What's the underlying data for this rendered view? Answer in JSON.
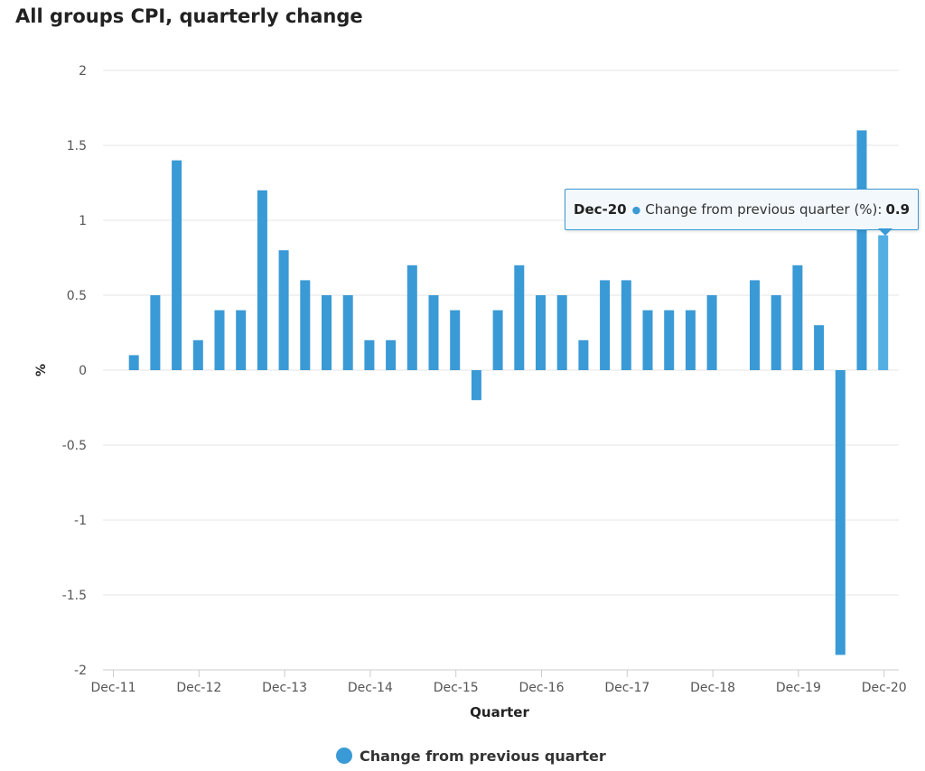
{
  "chart_data": {
    "type": "bar",
    "title": "All groups CPI, quarterly change",
    "xlabel": "Quarter",
    "ylabel": "%",
    "ylim": [
      -2,
      2
    ],
    "yticks": [
      -2,
      -1.5,
      -1,
      -0.5,
      0,
      0.5,
      1,
      1.5,
      2
    ],
    "ytick_labels": [
      "-2",
      "-1.5",
      "-1",
      "-0.5",
      "0",
      "0.5",
      "1",
      "1.5",
      "2"
    ],
    "grid": true,
    "legend_position": "bottom-center",
    "color": "#3a9ad6",
    "categories": [
      "Dec-11",
      "Mar-12",
      "Jun-12",
      "Sep-12",
      "Dec-12",
      "Mar-13",
      "Jun-13",
      "Sep-13",
      "Dec-13",
      "Mar-14",
      "Jun-14",
      "Sep-14",
      "Dec-14",
      "Mar-15",
      "Jun-15",
      "Sep-15",
      "Dec-15",
      "Mar-16",
      "Jun-16",
      "Sep-16",
      "Dec-16",
      "Mar-17",
      "Jun-17",
      "Sep-17",
      "Dec-17",
      "Mar-18",
      "Jun-18",
      "Sep-18",
      "Dec-18",
      "Mar-19",
      "Jun-19",
      "Sep-19",
      "Dec-19",
      "Mar-20",
      "Jun-20",
      "Sep-20",
      "Dec-20"
    ],
    "x_tick_labels": [
      "Dec-11",
      "Dec-12",
      "Dec-13",
      "Dec-14",
      "Dec-15",
      "Dec-16",
      "Dec-17",
      "Dec-18",
      "Dec-19",
      "Dec-20"
    ],
    "series": [
      {
        "name": "Change from previous quarter",
        "values": [
          0.0,
          0.1,
          0.5,
          1.4,
          0.2,
          0.4,
          0.4,
          1.2,
          0.8,
          0.6,
          0.5,
          0.5,
          0.2,
          0.2,
          0.7,
          0.5,
          0.4,
          -0.2,
          0.4,
          0.7,
          0.5,
          0.5,
          0.2,
          0.6,
          0.6,
          0.4,
          0.4,
          0.4,
          0.5,
          0.0,
          0.6,
          0.5,
          0.7,
          0.3,
          -1.9,
          1.6,
          0.9
        ]
      }
    ],
    "tooltip": {
      "category": "Dec-20",
      "series_label": "Change from previous quarter (%):",
      "value": "0.9"
    }
  }
}
